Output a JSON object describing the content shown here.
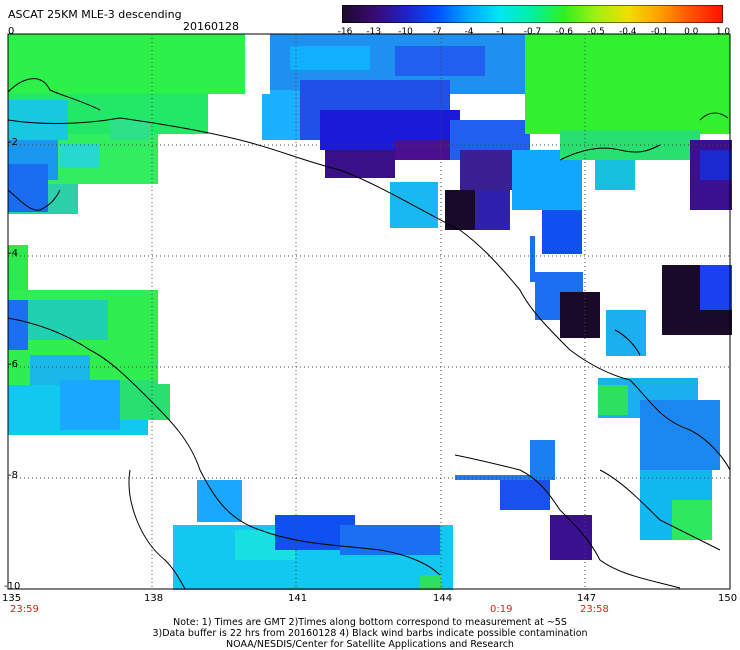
{
  "title": "ASCAT 25KM MLE-3 descending",
  "date": "20160128",
  "colorbar": {
    "labels": [
      "-16",
      "-13",
      "-10",
      "-7",
      "-4",
      "-1",
      "-0.7",
      "-0.6",
      "-0.5",
      "-0.4",
      "-0.1",
      "0.0",
      "1.0"
    ],
    "colors": [
      "#1a0a2a",
      "#3a0a70",
      "#2020c8",
      "#0050ff",
      "#00a8ff",
      "#00e8f0",
      "#00f0a0",
      "#30f020",
      "#a0f010",
      "#f0e000",
      "#ffa000",
      "#ff5000",
      "#ff1000"
    ]
  },
  "axes": {
    "lon_labels": [
      "135",
      "138",
      "141",
      "144",
      "147",
      "150"
    ],
    "lat_labels": [
      "0",
      "-2",
      "-4",
      "-6",
      "-8",
      "-10"
    ]
  },
  "times": [
    "23:59",
    "0:19",
    "23:58"
  ],
  "notes": [
    "Note: 1) Times are GMT 2)Times along bottom correspond to measurement at ~5S",
    "3)Data buffer is 22 hrs from 20160128 4) Black wind barbs indicate possible contamination",
    "NOAA/NESDIS/Center for Satellite Applications and Research"
  ]
}
